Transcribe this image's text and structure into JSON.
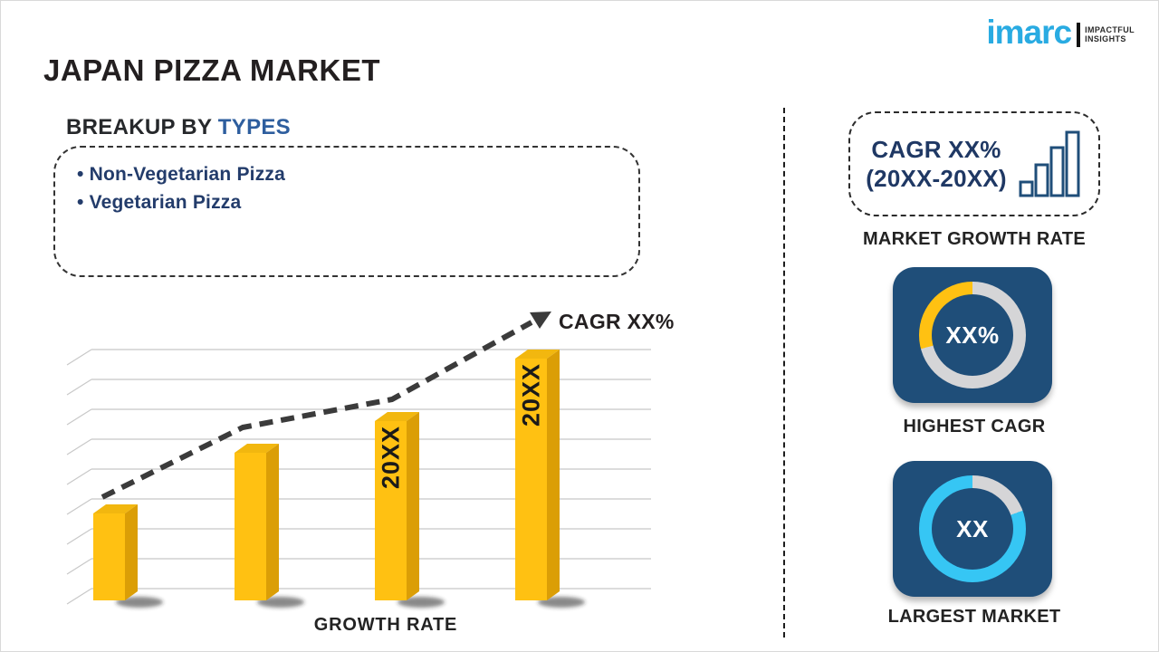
{
  "header": {
    "title": "JAPAN PIZZA MARKET"
  },
  "logo": {
    "brand": "imarc",
    "tagline_line1": "IMPACTFUL",
    "tagline_line2": "INSIGHTS",
    "brand_color": "#29ABE2"
  },
  "breakup": {
    "heading_prefix": "BREAKUP BY ",
    "heading_highlight": "TYPES",
    "items": [
      "Non-Vegetarian Pizza",
      "Vegetarian Pizza"
    ]
  },
  "chart_data": {
    "type": "bar",
    "categories": [
      "",
      "",
      "20XX",
      "20XX"
    ],
    "bar_labels": [
      "",
      "",
      "20XX",
      "20XX"
    ],
    "values": [
      36,
      61,
      74,
      100
    ],
    "value_note": "relative bar heights, max = 100 (no numeric axis shown)",
    "title": "",
    "xlabel": "GROWTH RATE",
    "ylabel": "",
    "gridlines": true,
    "bar_color": "#FFC112",
    "trend_annotation": "CAGR XX%",
    "trend_style": "dashed-ascending-arrow"
  },
  "right_panel": {
    "growth_box": {
      "line1": "CAGR XX%",
      "line2": "(20XX-20XX)",
      "icon": "ascending-bars-icon"
    },
    "market_growth_label": "MARKET GROWTH RATE",
    "highest_cagr": {
      "value": "XX%",
      "label": "HIGHEST CAGR",
      "ring_segments": [
        {
          "color": "#D5D5D7",
          "from": 0,
          "to": 255
        },
        {
          "color": "#FFC112",
          "from": 255,
          "to": 360
        }
      ]
    },
    "largest_market": {
      "value": "XX",
      "label": "LARGEST MARKET",
      "ring_segments": [
        {
          "color": "#D5D5D7",
          "from": 0,
          "to": 70
        },
        {
          "color": "#36C6F4",
          "from": 70,
          "to": 360
        }
      ]
    }
  },
  "colors": {
    "accent_yellow": "#FFC112",
    "navy_card": "#1F4E79",
    "navy_text": "#1F3864",
    "list_navy": "#233C6B",
    "heading_blue": "#2E5E9E",
    "logo_cyan": "#29ABE2",
    "donut_cyan": "#36C6F4",
    "ring_gray": "#D5D5D7",
    "gridline_gray": "#C8C8C8",
    "trend_dark": "#3B3B3B"
  }
}
